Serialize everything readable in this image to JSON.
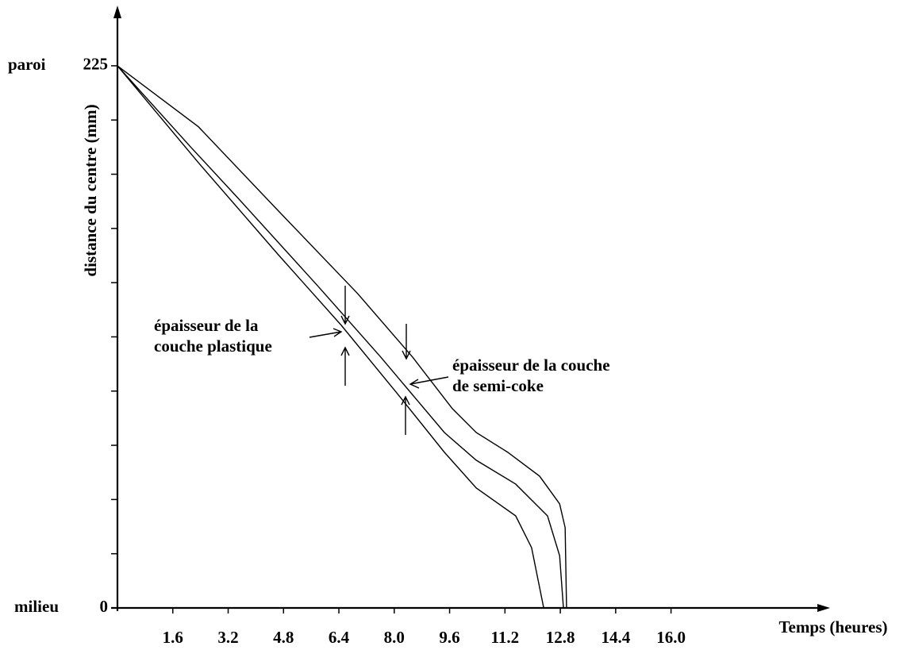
{
  "chart_data": {
    "type": "line",
    "y_label": "distance du centre (mm)",
    "x_label": "Temps (heures)",
    "y_top_label": "paroi",
    "y_bottom_label": "milieu",
    "annotations": [
      "épaisseur de la",
      "couche plastique",
      "épaisseur de la couche",
      "de semi-coke"
    ],
    "xlim": [
      0,
      20
    ],
    "ylim": [
      0,
      250
    ],
    "xticks": [
      1.6,
      3.2,
      4.8,
      6.4,
      {
        "value": 8,
        "label": "8.0"
      },
      9.6,
      11.2,
      12.8,
      14.4,
      {
        "value": 16,
        "label": "16.0"
      }
    ],
    "yticks": [
      0,
      225
    ],
    "yminor_ticks": [
      22.5,
      45,
      67.5,
      90,
      112.5,
      135,
      157.5,
      180,
      202.5
    ],
    "series": [
      {
        "color": "#000000",
        "x": [
          0,
          2.34,
          4.63,
          6.94,
          8.53,
          9.68,
          10.37,
          11.28,
          12.2,
          12.78,
          12.94,
          12.98
        ],
        "values": [
          225,
          199.7,
          165.1,
          130.5,
          104.1,
          82.7,
          72.8,
          64.6,
          54.7,
          43.2,
          33.3,
          0
        ]
      },
      {
        "color": "#000000",
        "x": [
          0,
          2.11,
          3.49,
          5.78,
          7.61,
          9.45,
          10.37,
          11.51,
          12.43,
          12.78,
          12.89
        ],
        "values": [
          225,
          191.4,
          170.0,
          133.8,
          104.1,
          72.8,
          61.3,
          51.4,
          38.2,
          21.7,
          0
        ]
      },
      {
        "color": "#000000",
        "x": [
          0,
          2.34,
          4.63,
          6.47,
          8.07,
          9.45,
          10.37,
          11.51,
          11.97,
          12.32
        ],
        "values": [
          225,
          184.8,
          146.9,
          117.3,
          89.3,
          64.6,
          49.8,
          38.2,
          25.0,
          0
        ]
      }
    ]
  }
}
